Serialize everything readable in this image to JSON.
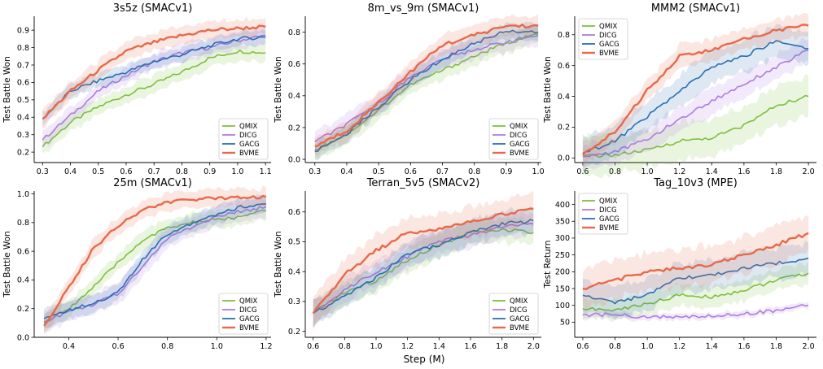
{
  "figure": {
    "shared_xlabel": "Step (M)"
  },
  "chart_data": [
    {
      "type": "line",
      "title": "3s5z (SMACv1)",
      "xlabel": "",
      "ylabel": "Test Battle Won",
      "xlim": [
        0.27,
        1.12
      ],
      "ylim": [
        0.14,
        0.98
      ],
      "xticks": [
        "0.3",
        "0.4",
        "0.5",
        "0.6",
        "0.7",
        "0.8",
        "0.9",
        "1.0",
        "1.1"
      ],
      "yticks": [
        "0.2",
        "0.3",
        "0.4",
        "0.5",
        "0.6",
        "0.7",
        "0.8",
        "0.9"
      ],
      "legend_position": "lower-right",
      "x": [
        0.3,
        0.4,
        0.5,
        0.6,
        0.7,
        0.8,
        0.9,
        1.0,
        1.1
      ],
      "series": [
        {
          "name": "QMIX",
          "color": "#7ebf3d",
          "values": [
            0.23,
            0.37,
            0.46,
            0.53,
            0.59,
            0.66,
            0.74,
            0.78,
            0.77
          ],
          "band": 0.05
        },
        {
          "name": "DICG",
          "color": "#b07ce0",
          "values": [
            0.27,
            0.41,
            0.55,
            0.64,
            0.72,
            0.77,
            0.8,
            0.84,
            0.87
          ],
          "band": 0.05
        },
        {
          "name": "GACG",
          "color": "#2a6fb0",
          "values": [
            0.39,
            0.55,
            0.61,
            0.66,
            0.72,
            0.76,
            0.81,
            0.85,
            0.86
          ],
          "band": 0.04
        },
        {
          "name": "BVME",
          "color": "#e8694a",
          "values": [
            0.39,
            0.55,
            0.67,
            0.78,
            0.83,
            0.87,
            0.9,
            0.91,
            0.92
          ],
          "band": 0.05
        }
      ]
    },
    {
      "type": "line",
      "title": "8m_vs_9m (SMACv1)",
      "xlabel": "",
      "ylabel": "Test Battle Won",
      "xlim": [
        0.27,
        1.01
      ],
      "ylim": [
        -0.02,
        0.9
      ],
      "xticks": [
        "0.3",
        "0.4",
        "0.5",
        "0.6",
        "0.7",
        "0.8",
        "0.9",
        "1.0"
      ],
      "yticks": [
        "0.0",
        "0.2",
        "0.4",
        "0.6",
        "0.8"
      ],
      "legend_position": "lower-right",
      "x": [
        0.3,
        0.4,
        0.5,
        0.6,
        0.7,
        0.8,
        0.9,
        1.0
      ],
      "series": [
        {
          "name": "QMIX",
          "color": "#7ebf3d",
          "values": [
            0.06,
            0.16,
            0.31,
            0.47,
            0.56,
            0.65,
            0.73,
            0.79
          ],
          "band": 0.06
        },
        {
          "name": "DICG",
          "color": "#b07ce0",
          "values": [
            0.11,
            0.22,
            0.35,
            0.52,
            0.63,
            0.69,
            0.74,
            0.78
          ],
          "band": 0.06
        },
        {
          "name": "GACG",
          "color": "#2a6fb0",
          "values": [
            0.05,
            0.16,
            0.33,
            0.5,
            0.63,
            0.73,
            0.81,
            0.8
          ],
          "band": 0.05
        },
        {
          "name": "BVME",
          "color": "#e8694a",
          "values": [
            0.08,
            0.18,
            0.36,
            0.55,
            0.72,
            0.78,
            0.84,
            0.84
          ],
          "band": 0.06
        }
      ]
    },
    {
      "type": "line",
      "title": "MMM2 (SMACv1)",
      "xlabel": "",
      "ylabel": "Test Battle Won",
      "xlim": [
        0.55,
        2.05
      ],
      "ylim": [
        -0.03,
        0.92
      ],
      "xticks": [
        "0.6",
        "0.8",
        "1.0",
        "1.2",
        "1.4",
        "1.6",
        "1.8",
        "2.0"
      ],
      "yticks": [
        "0.0",
        "0.2",
        "0.4",
        "0.6",
        "0.8"
      ],
      "legend_position": "upper-left",
      "x": [
        0.6,
        0.8,
        1.0,
        1.2,
        1.4,
        1.6,
        1.8,
        2.0
      ],
      "series": [
        {
          "name": "QMIX",
          "color": "#7ebf3d",
          "values": [
            0.01,
            0.02,
            0.05,
            0.11,
            0.13,
            0.21,
            0.34,
            0.4
          ],
          "band": 0.12
        },
        {
          "name": "DICG",
          "color": "#b07ce0",
          "values": [
            0.01,
            0.04,
            0.12,
            0.25,
            0.37,
            0.48,
            0.59,
            0.7
          ],
          "band": 0.08
        },
        {
          "name": "GACG",
          "color": "#2a6fb0",
          "values": [
            0.03,
            0.11,
            0.27,
            0.43,
            0.59,
            0.66,
            0.76,
            0.71
          ],
          "band": 0.1
        },
        {
          "name": "BVME",
          "color": "#e8694a",
          "values": [
            0.02,
            0.17,
            0.44,
            0.66,
            0.7,
            0.77,
            0.83,
            0.86
          ],
          "band": 0.07
        }
      ]
    },
    {
      "type": "line",
      "title": "25m (SMACv1)",
      "xlabel": "",
      "ylabel": "Test Battle Won",
      "xlim": [
        0.26,
        1.22
      ],
      "ylim": [
        0.0,
        1.02
      ],
      "xticks": [
        "0.4",
        "0.6",
        "0.8",
        "1.0",
        "1.2"
      ],
      "yticks": [
        "0.0",
        "0.2",
        "0.4",
        "0.6",
        "0.8",
        "1.0"
      ],
      "legend_position": "lower-right",
      "x": [
        0.3,
        0.4,
        0.5,
        0.6,
        0.7,
        0.8,
        0.9,
        1.0,
        1.1,
        1.2
      ],
      "series": [
        {
          "name": "QMIX",
          "color": "#7ebf3d",
          "values": [
            0.1,
            0.2,
            0.35,
            0.52,
            0.68,
            0.76,
            0.8,
            0.82,
            0.84,
            0.88
          ],
          "band": 0.06
        },
        {
          "name": "DICG",
          "color": "#b07ce0",
          "values": [
            0.11,
            0.18,
            0.23,
            0.3,
            0.5,
            0.69,
            0.77,
            0.84,
            0.88,
            0.91
          ],
          "band": 0.07
        },
        {
          "name": "GACG",
          "color": "#2a6fb0",
          "values": [
            0.13,
            0.19,
            0.24,
            0.31,
            0.54,
            0.72,
            0.8,
            0.86,
            0.91,
            0.93
          ],
          "band": 0.06
        },
        {
          "name": "BVME",
          "color": "#e8694a",
          "values": [
            0.08,
            0.35,
            0.62,
            0.78,
            0.89,
            0.94,
            0.96,
            0.97,
            0.98,
            0.98
          ],
          "band": 0.06
        }
      ]
    },
    {
      "type": "line",
      "title": "Terran_5v5 (SMACv2)",
      "xlabel": "Step (M)",
      "ylabel": "Test Battle Won",
      "xlim": [
        0.55,
        2.05
      ],
      "ylim": [
        0.18,
        0.67
      ],
      "xticks": [
        "0.6",
        "0.8",
        "1.0",
        "1.2",
        "1.4",
        "1.6",
        "1.8",
        "2.0"
      ],
      "yticks": [
        "0.2",
        "0.3",
        "0.4",
        "0.5",
        "0.6"
      ],
      "legend_position": "lower-right",
      "x": [
        0.6,
        0.8,
        1.0,
        1.2,
        1.4,
        1.6,
        1.8,
        2.0
      ],
      "series": [
        {
          "name": "QMIX",
          "color": "#7ebf3d",
          "values": [
            0.26,
            0.33,
            0.37,
            0.44,
            0.49,
            0.53,
            0.54,
            0.53
          ],
          "band": 0.04
        },
        {
          "name": "DICG",
          "color": "#b07ce0",
          "values": [
            0.26,
            0.34,
            0.4,
            0.45,
            0.5,
            0.52,
            0.55,
            0.56
          ],
          "band": 0.04
        },
        {
          "name": "GACG",
          "color": "#2a6fb0",
          "values": [
            0.26,
            0.32,
            0.38,
            0.46,
            0.49,
            0.53,
            0.56,
            0.57
          ],
          "band": 0.04
        },
        {
          "name": "BVME",
          "color": "#e8694a",
          "values": [
            0.26,
            0.39,
            0.47,
            0.53,
            0.54,
            0.57,
            0.59,
            0.61
          ],
          "band": 0.05
        }
      ]
    },
    {
      "type": "line",
      "title": "Tag_10v3 (MPE)",
      "xlabel": "",
      "ylabel": "Test Return",
      "xlim": [
        0.55,
        2.05
      ],
      "ylim": [
        5,
        440
      ],
      "xticks": [
        "0.6",
        "0.8",
        "1.0",
        "1.2",
        "1.4",
        "1.6",
        "1.8",
        "2.0"
      ],
      "yticks": [
        "50",
        "100",
        "150",
        "200",
        "250",
        "300",
        "350",
        "400"
      ],
      "legend_position": "upper-left",
      "x": [
        0.6,
        0.8,
        1.0,
        1.2,
        1.4,
        1.6,
        1.8,
        2.0
      ],
      "series": [
        {
          "name": "QMIX",
          "color": "#7ebf3d",
          "values": [
            90,
            85,
            105,
            130,
            125,
            145,
            175,
            195
          ],
          "band": 30
        },
        {
          "name": "DICG",
          "color": "#b07ce0",
          "values": [
            72,
            72,
            65,
            65,
            68,
            75,
            85,
            100
          ],
          "band": 10
        },
        {
          "name": "GACG",
          "color": "#2a6fb0",
          "values": [
            130,
            110,
            130,
            180,
            190,
            210,
            225,
            240
          ],
          "band": 45
        },
        {
          "name": "BVME",
          "color": "#e8694a",
          "values": [
            150,
            175,
            200,
            210,
            220,
            250,
            280,
            315
          ],
          "band": 55
        }
      ]
    }
  ]
}
